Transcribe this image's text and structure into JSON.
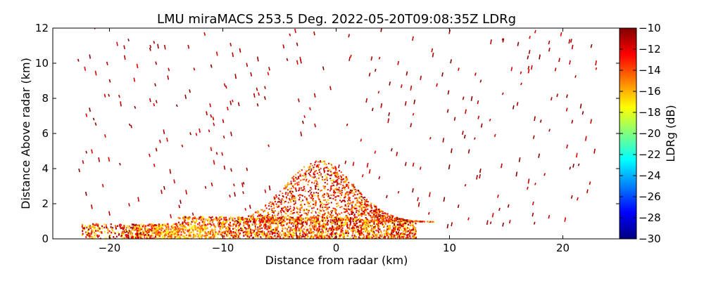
{
  "chart_data": {
    "type": "heatmap",
    "title": "LMU miraMACS 253.5 Deg. 2022-05-20T09:08:35Z  LDRg",
    "xlabel": "Distance from radar (km)",
    "ylabel": "Distance Above radar  (km)",
    "xlim": [
      -25,
      25
    ],
    "ylim": [
      0,
      12
    ],
    "xticks": [
      -20,
      -10,
      0,
      10,
      20
    ],
    "xtick_labels": [
      "−20",
      "−10",
      "0",
      "10",
      "20"
    ],
    "yticks": [
      0,
      2,
      4,
      6,
      8,
      10,
      12
    ],
    "ytick_labels": [
      "0",
      "2",
      "4",
      "6",
      "8",
      "10",
      "12"
    ],
    "colorbar": {
      "label": "LDRg (dB)",
      "range": [
        -30,
        -10
      ],
      "ticks": [
        -10,
        -12,
        -14,
        -16,
        -18,
        -20,
        -22,
        -24,
        -26,
        -28,
        -30
      ],
      "tick_labels": [
        "−10",
        "−12",
        "−14",
        "−16",
        "−18",
        "−20",
        "−22",
        "−24",
        "−26",
        "−28",
        "−30"
      ],
      "colormap": [
        "#00007f",
        "#0000ff",
        "#007fff",
        "#00ffff",
        "#7fff7f",
        "#ffff00",
        "#ff7f00",
        "#ff0000",
        "#7f0000"
      ]
    },
    "grid": false,
    "fields": {
      "sparse_hydrometeors": {
        "x_range": [
          -23,
          23
        ],
        "z_range": [
          0.5,
          12
        ],
        "ldr_range_db": [
          -12,
          -10
        ]
      },
      "low_layer_band": {
        "x_range": [
          -22.5,
          7
        ],
        "z_range": [
          0,
          1.3
        ],
        "ldr_range_db": [
          -18,
          -10
        ]
      },
      "convective_core": {
        "x_range": [
          -9,
          9
        ],
        "z_range": [
          1,
          4.5
        ],
        "ldr_range_db": [
          -17,
          -10
        ]
      }
    }
  }
}
